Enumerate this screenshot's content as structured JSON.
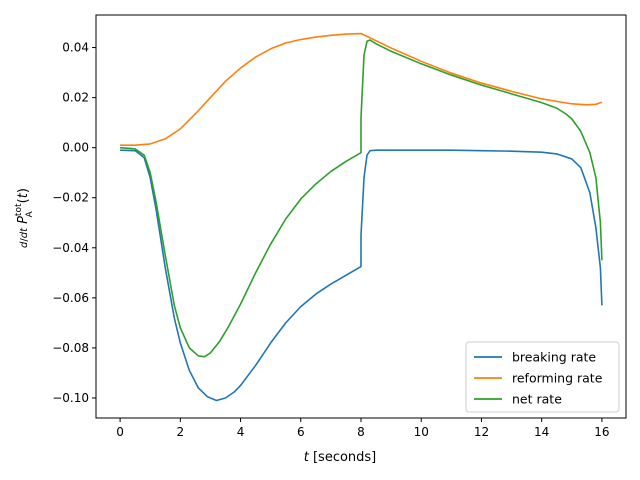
{
  "chart_data": {
    "type": "line",
    "xlabel": "t [seconds]",
    "ylabel": "d/dt P_A^tot(t)",
    "xlim": [
      -0.8,
      16.8
    ],
    "ylim": [
      -0.108,
      0.053
    ],
    "xticks": [
      0,
      2,
      4,
      6,
      8,
      10,
      12,
      14,
      16
    ],
    "yticks": [
      -0.1,
      -0.08,
      -0.06,
      -0.04,
      -0.02,
      0.0,
      0.02,
      0.04
    ],
    "ytick_labels": [
      "−0.10",
      "−0.08",
      "−0.06",
      "−0.04",
      "−0.02",
      "0.00",
      "0.02",
      "0.04"
    ],
    "legend_position": "lower-right",
    "series": [
      {
        "name": "breaking rate",
        "color": "#1f77b4",
        "x": [
          0,
          0.5,
          0.8,
          1.0,
          1.2,
          1.5,
          1.8,
          2.0,
          2.3,
          2.6,
          2.9,
          3.2,
          3.5,
          3.8,
          4.0,
          4.5,
          5.0,
          5.5,
          6.0,
          6.5,
          7.0,
          7.5,
          8.0,
          8.0,
          8.1,
          8.2,
          8.3,
          8.5,
          9.0,
          10.0,
          11.0,
          12.0,
          13.0,
          14.0,
          14.5,
          15.0,
          15.3,
          15.6,
          15.8,
          15.95,
          16.0
        ],
        "y": [
          -0.001,
          -0.0012,
          -0.004,
          -0.012,
          -0.025,
          -0.048,
          -0.068,
          -0.078,
          -0.089,
          -0.096,
          -0.0995,
          -0.101,
          -0.1,
          -0.0975,
          -0.095,
          -0.087,
          -0.078,
          -0.07,
          -0.0635,
          -0.0585,
          -0.0545,
          -0.051,
          -0.0475,
          -0.035,
          -0.012,
          -0.003,
          -0.0012,
          -0.001,
          -0.001,
          -0.001,
          -0.001,
          -0.0012,
          -0.0014,
          -0.0018,
          -0.0025,
          -0.0045,
          -0.008,
          -0.018,
          -0.032,
          -0.048,
          -0.063
        ]
      },
      {
        "name": "reforming rate",
        "color": "#ff7f0e",
        "x": [
          0,
          0.5,
          1.0,
          1.5,
          2.0,
          2.5,
          3.0,
          3.5,
          4.0,
          4.5,
          5.0,
          5.5,
          6.0,
          6.5,
          7.0,
          7.5,
          8.0,
          9.0,
          10.0,
          11.0,
          12.0,
          13.0,
          14.0,
          14.5,
          15.0,
          15.5,
          15.8,
          16.0
        ],
        "y": [
          0.001,
          0.001,
          0.0015,
          0.0035,
          0.0075,
          0.0135,
          0.02,
          0.0265,
          0.0318,
          0.0362,
          0.0395,
          0.0418,
          0.0432,
          0.0442,
          0.0449,
          0.0454,
          0.0456,
          0.0398,
          0.0345,
          0.0298,
          0.0258,
          0.0225,
          0.0195,
          0.0185,
          0.0175,
          0.0171,
          0.0173,
          0.0182
        ]
      },
      {
        "name": "net rate",
        "color": "#2ca02c",
        "x": [
          0,
          0.5,
          0.8,
          1.0,
          1.2,
          1.5,
          1.8,
          2.0,
          2.3,
          2.6,
          2.8,
          3.0,
          3.3,
          3.6,
          4.0,
          4.5,
          5.0,
          5.5,
          6.0,
          6.5,
          7.0,
          7.5,
          8.0,
          8.0,
          8.1,
          8.2,
          8.3,
          8.5,
          9.0,
          10.0,
          11.0,
          12.0,
          13.0,
          14.0,
          14.5,
          14.8,
          15.0,
          15.3,
          15.6,
          15.8,
          15.95,
          16.0
        ],
        "y": [
          0,
          -0.0005,
          -0.003,
          -0.01,
          -0.022,
          -0.043,
          -0.063,
          -0.072,
          -0.08,
          -0.0832,
          -0.0835,
          -0.082,
          -0.0775,
          -0.0715,
          -0.0625,
          -0.05,
          -0.0385,
          -0.0285,
          -0.0205,
          -0.0145,
          -0.0095,
          -0.0055,
          -0.002,
          0.012,
          0.037,
          0.0425,
          0.043,
          0.0415,
          0.0385,
          0.0335,
          0.029,
          0.025,
          0.0215,
          0.018,
          0.0158,
          0.0135,
          0.0115,
          0.0065,
          -0.002,
          -0.012,
          -0.03,
          -0.045
        ]
      }
    ]
  }
}
